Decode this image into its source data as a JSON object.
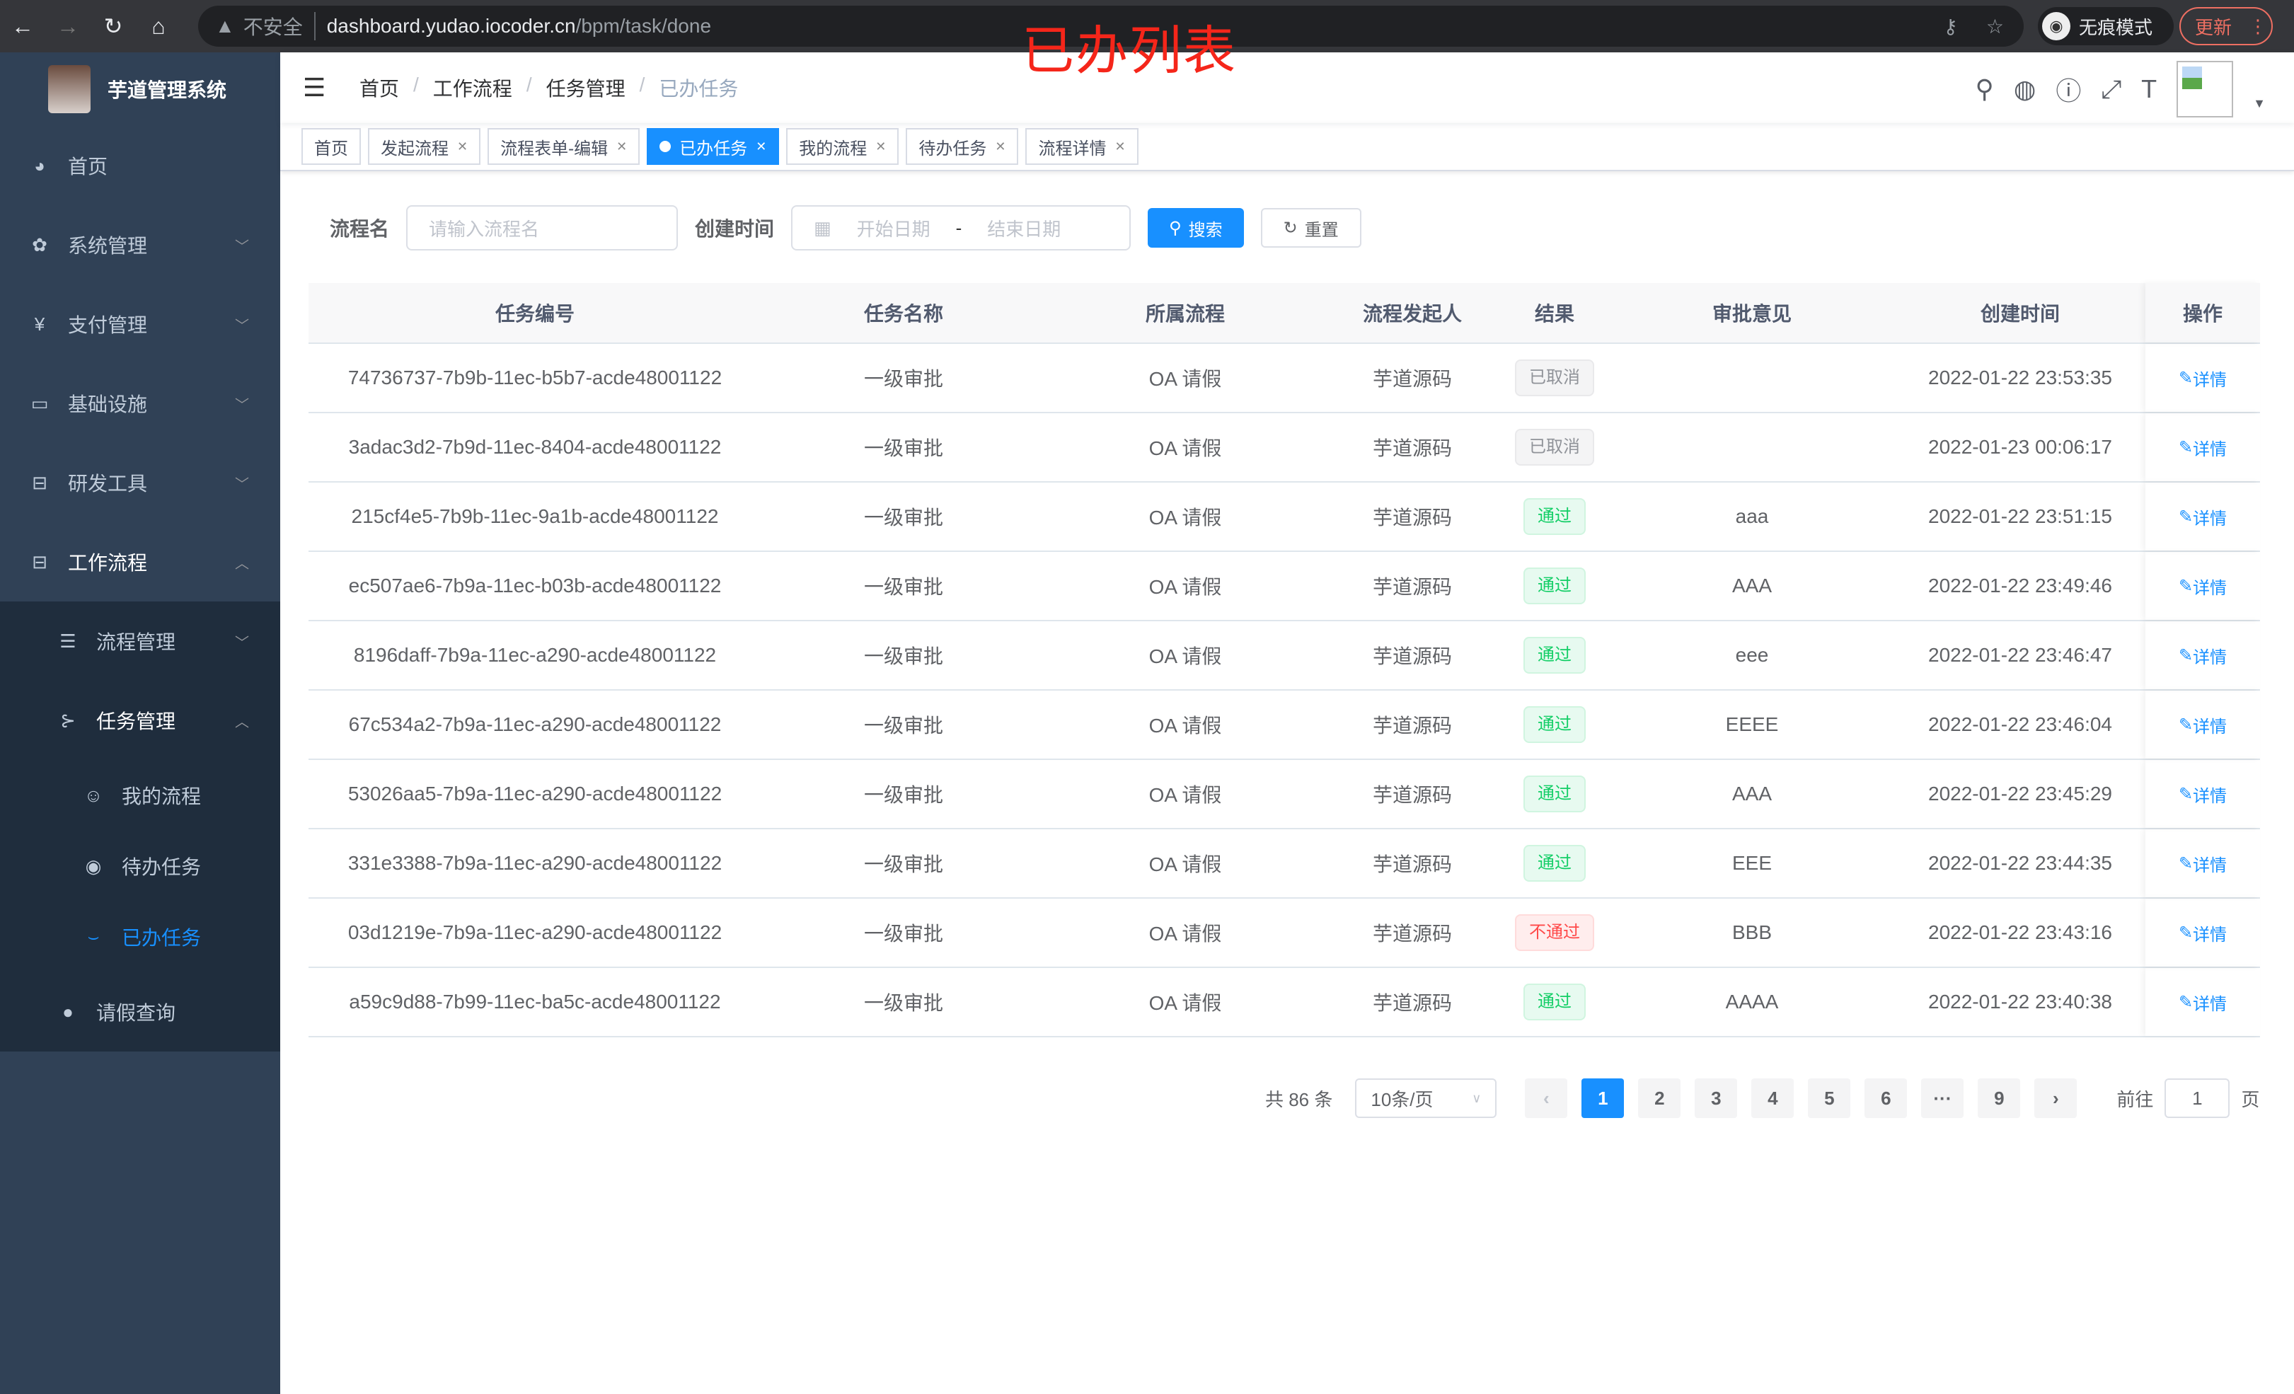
{
  "browser": {
    "not_secure": "不安全",
    "url_host": "dashboard.yudao.iocoder.cn",
    "url_path": "/bpm/task/done",
    "incognito": "无痕模式",
    "update": "更新"
  },
  "annotation": "已办列表",
  "sidebar": {
    "title": "芋道管理系统",
    "items": [
      {
        "label": "首页",
        "icon": "dashboard-icon"
      },
      {
        "label": "系统管理",
        "icon": "gear-icon"
      },
      {
        "label": "支付管理",
        "icon": "yen-icon"
      },
      {
        "label": "基础设施",
        "icon": "monitor-icon"
      },
      {
        "label": "研发工具",
        "icon": "toolbox-icon"
      },
      {
        "label": "工作流程",
        "icon": "toolbox-icon"
      },
      {
        "label": "流程管理",
        "icon": "list-icon"
      },
      {
        "label": "任务管理",
        "icon": "tree-icon"
      },
      {
        "label": "我的流程",
        "icon": "face-icon"
      },
      {
        "label": "待办任务",
        "icon": "eye-icon"
      },
      {
        "label": "已办任务",
        "icon": "eye-closed-icon"
      },
      {
        "label": "请假查询",
        "icon": "user-icon"
      }
    ]
  },
  "breadcrumb": [
    "首页",
    "工作流程",
    "任务管理",
    "已办任务"
  ],
  "tags": [
    "首页",
    "发起流程",
    "流程表单-编辑",
    "已办任务",
    "我的流程",
    "待办任务",
    "流程详情"
  ],
  "form": {
    "name_label": "流程名",
    "name_placeholder": "请输入流程名",
    "time_label": "创建时间",
    "start_placeholder": "开始日期",
    "sep": "-",
    "end_placeholder": "结束日期",
    "search": "搜索",
    "reset": "重置"
  },
  "table": {
    "headers": [
      "任务编号",
      "任务名称",
      "所属流程",
      "流程发起人",
      "结果",
      "审批意见",
      "创建时间",
      "操作"
    ],
    "action": "详情",
    "rows": [
      [
        "74736737-7b9b-11ec-b5b7-acde48001122",
        "一级审批",
        "OA 请假",
        "芋道源码",
        "已取消",
        "",
        "2022-01-22 23:53:35"
      ],
      [
        "3adac3d2-7b9d-11ec-8404-acde48001122",
        "一级审批",
        "OA 请假",
        "芋道源码",
        "已取消",
        "",
        "2022-01-23 00:06:17"
      ],
      [
        "215cf4e5-7b9b-11ec-9a1b-acde48001122",
        "一级审批",
        "OA 请假",
        "芋道源码",
        "通过",
        "aaa",
        "2022-01-22 23:51:15"
      ],
      [
        "ec507ae6-7b9a-11ec-b03b-acde48001122",
        "一级审批",
        "OA 请假",
        "芋道源码",
        "通过",
        "AAA",
        "2022-01-22 23:49:46"
      ],
      [
        "8196daff-7b9a-11ec-a290-acde48001122",
        "一级审批",
        "OA 请假",
        "芋道源码",
        "通过",
        "eee",
        "2022-01-22 23:46:47"
      ],
      [
        "67c534a2-7b9a-11ec-a290-acde48001122",
        "一级审批",
        "OA 请假",
        "芋道源码",
        "通过",
        "EEEE",
        "2022-01-22 23:46:04"
      ],
      [
        "53026aa5-7b9a-11ec-a290-acde48001122",
        "一级审批",
        "OA 请假",
        "芋道源码",
        "通过",
        "AAA",
        "2022-01-22 23:45:29"
      ],
      [
        "331e3388-7b9a-11ec-a290-acde48001122",
        "一级审批",
        "OA 请假",
        "芋道源码",
        "通过",
        "EEE",
        "2022-01-22 23:44:35"
      ],
      [
        "03d1219e-7b9a-11ec-a290-acde48001122",
        "一级审批",
        "OA 请假",
        "芋道源码",
        "不通过",
        "BBB",
        "2022-01-22 23:43:16"
      ],
      [
        "a59c9d88-7b99-11ec-ba5c-acde48001122",
        "一级审批",
        "OA 请假",
        "芋道源码",
        "通过",
        "AAAA",
        "2022-01-22 23:40:38"
      ]
    ]
  },
  "result_colors": {
    "已取消": "#909399",
    "通过": "#13ce66",
    "不通过": "#ff4949"
  },
  "pagination": {
    "total": "共 86 条",
    "page_size": "10条/页",
    "pages": [
      "1",
      "2",
      "3",
      "4",
      "5",
      "6",
      "···",
      "9"
    ],
    "current": "1",
    "goto_label": "前往",
    "goto_value": "1",
    "page_unit": "页"
  },
  "accent": "#1890ff"
}
